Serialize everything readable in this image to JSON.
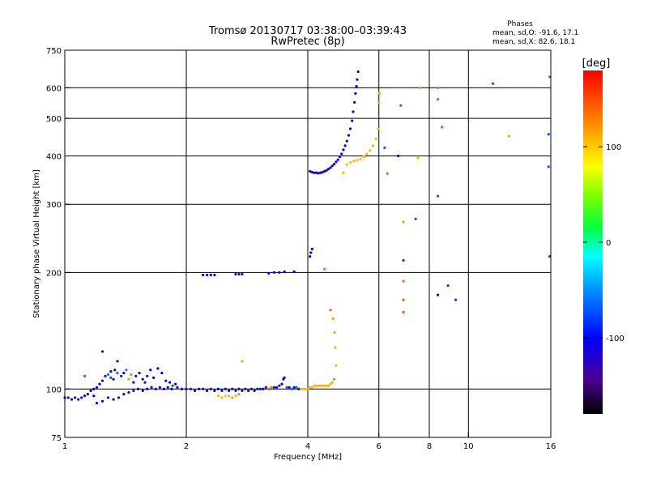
{
  "chart_data": {
    "type": "scatter",
    "title": "Tromsø 20130717 03:38:00–03:39:43",
    "subtitle": "RwPretec (8p)",
    "phase_stats": {
      "header": "Phases",
      "line_o": "mean, sd,O: -91.6, 17.1",
      "line_x": "mean, sd,X:  82.6, 18.1"
    },
    "xlabel": "Frequency [MHz]",
    "ylabel": "Stationary phase Virtual Height [km]",
    "x_scale": "log",
    "y_scale": "log",
    "xlim": [
      1,
      16
    ],
    "ylim": [
      75,
      750
    ],
    "x_ticks": [
      {
        "value": 1,
        "label": "1"
      },
      {
        "value": 2,
        "label": "2"
      },
      {
        "value": 4,
        "label": "4"
      },
      {
        "value": 6,
        "label": "6"
      },
      {
        "value": 8,
        "label": "8"
      },
      {
        "value": 10,
        "label": "10"
      },
      {
        "value": 16,
        "label": "16"
      }
    ],
    "y_ticks": [
      {
        "value": 75,
        "label": "75"
      },
      {
        "value": 100,
        "label": "100"
      },
      {
        "value": 200,
        "label": "200"
      },
      {
        "value": 300,
        "label": "300"
      },
      {
        "value": 400,
        "label": "400"
      },
      {
        "value": 500,
        "label": "500"
      },
      {
        "value": 600,
        "label": "600"
      },
      {
        "value": 750,
        "label": "750"
      }
    ],
    "grid_x": [
      2,
      4,
      6,
      8,
      10
    ],
    "grid_y": [
      100,
      200,
      300,
      400,
      500,
      600
    ],
    "colorbar": {
      "label": "[deg]",
      "range": [
        -180,
        180
      ],
      "ticks": [
        {
          "value": 100,
          "label": "100"
        },
        {
          "value": 0,
          "label": "0"
        },
        {
          "value": -100,
          "label": "-100"
        }
      ]
    },
    "points": [
      {
        "f": 1.0,
        "h": 95,
        "p": -110
      },
      {
        "f": 1.02,
        "h": 95,
        "p": -110
      },
      {
        "f": 1.04,
        "h": 94,
        "p": -110
      },
      {
        "f": 1.06,
        "h": 95,
        "p": -105
      },
      {
        "f": 1.08,
        "h": 94,
        "p": -110
      },
      {
        "f": 1.1,
        "h": 95,
        "p": -108
      },
      {
        "f": 1.12,
        "h": 96,
        "p": -110
      },
      {
        "f": 1.14,
        "h": 97,
        "p": -100
      },
      {
        "f": 1.16,
        "h": 99,
        "p": -110
      },
      {
        "f": 1.18,
        "h": 100,
        "p": -105
      },
      {
        "f": 1.2,
        "h": 101,
        "p": -110
      },
      {
        "f": 1.22,
        "h": 103,
        "p": -100
      },
      {
        "f": 1.24,
        "h": 105,
        "p": -105
      },
      {
        "f": 1.26,
        "h": 108,
        "p": -110
      },
      {
        "f": 1.28,
        "h": 109,
        "p": -60
      },
      {
        "f": 1.3,
        "h": 107,
        "p": -70
      },
      {
        "f": 1.32,
        "h": 106,
        "p": -105
      },
      {
        "f": 1.3,
        "h": 111,
        "p": -110
      },
      {
        "f": 1.33,
        "h": 112,
        "p": -110
      },
      {
        "f": 1.35,
        "h": 110,
        "p": -60
      },
      {
        "f": 1.38,
        "h": 108,
        "p": -95
      },
      {
        "f": 1.4,
        "h": 110,
        "p": -110
      },
      {
        "f": 1.42,
        "h": 112,
        "p": -50
      },
      {
        "f": 1.44,
        "h": 106,
        "p": 120
      },
      {
        "f": 1.46,
        "h": 109,
        "p": 130
      },
      {
        "f": 1.48,
        "h": 104,
        "p": -100
      },
      {
        "f": 1.5,
        "h": 108,
        "p": -110
      },
      {
        "f": 1.53,
        "h": 110,
        "p": -105
      },
      {
        "f": 1.56,
        "h": 106,
        "p": -110
      },
      {
        "f": 1.58,
        "h": 104,
        "p": -95
      },
      {
        "f": 1.6,
        "h": 108,
        "p": -105
      },
      {
        "f": 1.63,
        "h": 112,
        "p": -110
      },
      {
        "f": 1.66,
        "h": 107,
        "p": -100
      },
      {
        "f": 1.7,
        "h": 113,
        "p": -110
      },
      {
        "f": 1.74,
        "h": 110,
        "p": -105
      },
      {
        "f": 1.78,
        "h": 105,
        "p": -100
      },
      {
        "f": 1.82,
        "h": 104,
        "p": -110
      },
      {
        "f": 1.85,
        "h": 102,
        "p": -70
      },
      {
        "f": 1.88,
        "h": 103,
        "p": -105
      },
      {
        "f": 1.35,
        "h": 118,
        "p": -100
      },
      {
        "f": 1.24,
        "h": 125,
        "p": -110
      },
      {
        "f": 1.12,
        "h": 108,
        "p": -60
      },
      {
        "f": 1.18,
        "h": 96,
        "p": -100
      },
      {
        "f": 1.2,
        "h": 92,
        "p": -110
      },
      {
        "f": 1.24,
        "h": 93,
        "p": -110
      },
      {
        "f": 1.28,
        "h": 95,
        "p": -110
      },
      {
        "f": 1.32,
        "h": 94,
        "p": -110
      },
      {
        "f": 1.36,
        "h": 95,
        "p": -110
      },
      {
        "f": 1.4,
        "h": 97,
        "p": -110
      },
      {
        "f": 1.44,
        "h": 98,
        "p": -110
      },
      {
        "f": 1.48,
        "h": 99,
        "p": -110
      },
      {
        "f": 1.52,
        "h": 100,
        "p": -110
      },
      {
        "f": 1.56,
        "h": 99,
        "p": -110
      },
      {
        "f": 1.6,
        "h": 100,
        "p": -110
      },
      {
        "f": 1.64,
        "h": 101,
        "p": -110
      },
      {
        "f": 1.68,
        "h": 100,
        "p": -110
      },
      {
        "f": 1.72,
        "h": 101,
        "p": -110
      },
      {
        "f": 1.76,
        "h": 100,
        "p": -110
      },
      {
        "f": 1.8,
        "h": 101,
        "p": -110
      },
      {
        "f": 1.84,
        "h": 100,
        "p": -110
      },
      {
        "f": 1.9,
        "h": 101,
        "p": -110
      },
      {
        "f": 1.95,
        "h": 100,
        "p": -110
      },
      {
        "f": 2.0,
        "h": 100,
        "p": -110
      },
      {
        "f": 2.05,
        "h": 100,
        "p": -110
      },
      {
        "f": 2.1,
        "h": 99,
        "p": -105
      },
      {
        "f": 2.15,
        "h": 100,
        "p": -110
      },
      {
        "f": 2.2,
        "h": 100,
        "p": -110
      },
      {
        "f": 2.25,
        "h": 99,
        "p": -100
      },
      {
        "f": 2.3,
        "h": 100,
        "p": -110
      },
      {
        "f": 2.35,
        "h": 99,
        "p": -110
      },
      {
        "f": 2.4,
        "h": 100,
        "p": -105
      },
      {
        "f": 2.45,
        "h": 99,
        "p": -110
      },
      {
        "f": 2.5,
        "h": 100,
        "p": -110
      },
      {
        "f": 2.55,
        "h": 99,
        "p": -110
      },
      {
        "f": 2.6,
        "h": 100,
        "p": -100
      },
      {
        "f": 2.65,
        "h": 99,
        "p": -110
      },
      {
        "f": 2.7,
        "h": 100,
        "p": -110
      },
      {
        "f": 2.75,
        "h": 99,
        "p": -105
      },
      {
        "f": 2.8,
        "h": 100,
        "p": -110
      },
      {
        "f": 2.85,
        "h": 99,
        "p": -110
      },
      {
        "f": 2.9,
        "h": 100,
        "p": -110
      },
      {
        "f": 2.95,
        "h": 99,
        "p": -110
      },
      {
        "f": 3.0,
        "h": 100,
        "p": -110
      },
      {
        "f": 3.05,
        "h": 100,
        "p": -100
      },
      {
        "f": 3.1,
        "h": 100,
        "p": -105
      },
      {
        "f": 3.15,
        "h": 101,
        "p": -110
      },
      {
        "f": 3.2,
        "h": 100,
        "p": 150
      },
      {
        "f": 3.25,
        "h": 101,
        "p": 140
      },
      {
        "f": 3.3,
        "h": 101,
        "p": -110
      },
      {
        "f": 3.35,
        "h": 101,
        "p": -105
      },
      {
        "f": 3.4,
        "h": 102,
        "p": -110
      },
      {
        "f": 3.45,
        "h": 103,
        "p": -110
      },
      {
        "f": 3.48,
        "h": 106,
        "p": -120
      },
      {
        "f": 3.5,
        "h": 107,
        "p": -125
      },
      {
        "f": 3.55,
        "h": 101,
        "p": -70
      },
      {
        "f": 3.6,
        "h": 101,
        "p": -110
      },
      {
        "f": 3.65,
        "h": 100,
        "p": -60
      },
      {
        "f": 3.7,
        "h": 101,
        "p": -110
      },
      {
        "f": 3.75,
        "h": 101,
        "p": -60
      },
      {
        "f": 3.8,
        "h": 100,
        "p": -110
      },
      {
        "f": 3.85,
        "h": 100,
        "p": 110
      },
      {
        "f": 3.9,
        "h": 100,
        "p": 110
      },
      {
        "f": 3.95,
        "h": 100,
        "p": 110
      },
      {
        "f": 4.0,
        "h": 100,
        "p": 110
      },
      {
        "f": 4.05,
        "h": 101,
        "p": 110
      },
      {
        "f": 4.1,
        "h": 101,
        "p": 110
      },
      {
        "f": 4.15,
        "h": 102,
        "p": 110
      },
      {
        "f": 4.2,
        "h": 102,
        "p": 110
      },
      {
        "f": 4.25,
        "h": 102,
        "p": 110
      },
      {
        "f": 4.3,
        "h": 102,
        "p": 110
      },
      {
        "f": 4.35,
        "h": 102,
        "p": 110
      },
      {
        "f": 4.4,
        "h": 102,
        "p": 110
      },
      {
        "f": 4.45,
        "h": 102,
        "p": 110
      },
      {
        "f": 4.5,
        "h": 102,
        "p": 110
      },
      {
        "f": 4.55,
        "h": 103,
        "p": 110
      },
      {
        "f": 4.6,
        "h": 104,
        "p": 110
      },
      {
        "f": 4.65,
        "h": 106,
        "p": 130
      },
      {
        "f": 2.4,
        "h": 96,
        "p": 110
      },
      {
        "f": 2.45,
        "h": 95,
        "p": 110
      },
      {
        "f": 2.5,
        "h": 96,
        "p": 100
      },
      {
        "f": 2.55,
        "h": 96,
        "p": 110
      },
      {
        "f": 2.6,
        "h": 95,
        "p": 120
      },
      {
        "f": 2.65,
        "h": 96,
        "p": 110
      },
      {
        "f": 2.7,
        "h": 97,
        "p": 130
      },
      {
        "f": 2.75,
        "h": 118,
        "p": 120
      },
      {
        "f": 2.2,
        "h": 197,
        "p": -110
      },
      {
        "f": 2.25,
        "h": 197,
        "p": -110
      },
      {
        "f": 2.3,
        "h": 197,
        "p": -110
      },
      {
        "f": 2.35,
        "h": 197,
        "p": -110
      },
      {
        "f": 2.65,
        "h": 198,
        "p": -110
      },
      {
        "f": 2.7,
        "h": 198,
        "p": -110
      },
      {
        "f": 2.75,
        "h": 198,
        "p": -110
      },
      {
        "f": 3.2,
        "h": 199,
        "p": -110
      },
      {
        "f": 3.3,
        "h": 200,
        "p": -110
      },
      {
        "f": 3.4,
        "h": 200,
        "p": -110
      },
      {
        "f": 3.5,
        "h": 201,
        "p": -110
      },
      {
        "f": 3.7,
        "h": 201,
        "p": -110
      },
      {
        "f": 4.05,
        "h": 220,
        "p": -110
      },
      {
        "f": 4.07,
        "h": 225,
        "p": -110
      },
      {
        "f": 4.1,
        "h": 230,
        "p": -110
      },
      {
        "f": 4.4,
        "h": 204,
        "p": 140
      },
      {
        "f": 4.05,
        "h": 365,
        "p": -110
      },
      {
        "f": 4.1,
        "h": 363,
        "p": -110
      },
      {
        "f": 4.15,
        "h": 362,
        "p": -110
      },
      {
        "f": 4.2,
        "h": 362,
        "p": -110
      },
      {
        "f": 4.25,
        "h": 361,
        "p": -110
      },
      {
        "f": 4.3,
        "h": 362,
        "p": -110
      },
      {
        "f": 4.35,
        "h": 363,
        "p": -110
      },
      {
        "f": 4.4,
        "h": 365,
        "p": -110
      },
      {
        "f": 4.45,
        "h": 367,
        "p": -110
      },
      {
        "f": 4.5,
        "h": 370,
        "p": -110
      },
      {
        "f": 4.55,
        "h": 373,
        "p": -110
      },
      {
        "f": 4.6,
        "h": 377,
        "p": -110
      },
      {
        "f": 4.65,
        "h": 381,
        "p": -110
      },
      {
        "f": 4.7,
        "h": 386,
        "p": -110
      },
      {
        "f": 4.75,
        "h": 391,
        "p": -110
      },
      {
        "f": 4.8,
        "h": 398,
        "p": -110
      },
      {
        "f": 4.85,
        "h": 405,
        "p": -110
      },
      {
        "f": 4.9,
        "h": 415,
        "p": -110
      },
      {
        "f": 4.95,
        "h": 425,
        "p": -110
      },
      {
        "f": 5.0,
        "h": 437,
        "p": -110
      },
      {
        "f": 5.05,
        "h": 452,
        "p": -110
      },
      {
        "f": 5.1,
        "h": 470,
        "p": -110
      },
      {
        "f": 5.15,
        "h": 493,
        "p": -110
      },
      {
        "f": 5.18,
        "h": 520,
        "p": -110
      },
      {
        "f": 5.22,
        "h": 550,
        "p": -110
      },
      {
        "f": 5.25,
        "h": 580,
        "p": -110
      },
      {
        "f": 5.28,
        "h": 605,
        "p": -110
      },
      {
        "f": 5.3,
        "h": 630,
        "p": -110
      },
      {
        "f": 5.33,
        "h": 660,
        "p": -110
      },
      {
        "f": 4.9,
        "h": 362,
        "p": 110
      },
      {
        "f": 5.0,
        "h": 380,
        "p": 110
      },
      {
        "f": 5.1,
        "h": 385,
        "p": 110
      },
      {
        "f": 5.2,
        "h": 388,
        "p": 110
      },
      {
        "f": 5.3,
        "h": 390,
        "p": 110
      },
      {
        "f": 5.4,
        "h": 393,
        "p": 110
      },
      {
        "f": 5.5,
        "h": 398,
        "p": 110
      },
      {
        "f": 5.6,
        "h": 405,
        "p": 110
      },
      {
        "f": 5.7,
        "h": 413,
        "p": 110
      },
      {
        "f": 5.8,
        "h": 425,
        "p": 110
      },
      {
        "f": 5.9,
        "h": 443,
        "p": 110
      },
      {
        "f": 5.98,
        "h": 470,
        "p": 110
      },
      {
        "f": 6.0,
        "h": 550,
        "p": 110
      },
      {
        "f": 6.02,
        "h": 580,
        "p": 110
      },
      {
        "f": 4.55,
        "h": 160,
        "p": 140
      },
      {
        "f": 4.62,
        "h": 152,
        "p": 120
      },
      {
        "f": 4.66,
        "h": 140,
        "p": 120
      },
      {
        "f": 4.68,
        "h": 128,
        "p": 110
      },
      {
        "f": 4.7,
        "h": 115,
        "p": 110
      },
      {
        "f": 6.2,
        "h": 420,
        "p": -70
      },
      {
        "f": 6.3,
        "h": 360,
        "p": 140
      },
      {
        "f": 6.8,
        "h": 540,
        "p": -60
      },
      {
        "f": 6.7,
        "h": 400,
        "p": -100
      },
      {
        "f": 6.9,
        "h": 270,
        "p": 120
      },
      {
        "f": 6.9,
        "h": 215,
        "p": -80
      },
      {
        "f": 6.9,
        "h": 190,
        "p": 140
      },
      {
        "f": 6.9,
        "h": 170,
        "p": 150
      },
      {
        "f": 6.9,
        "h": 158,
        "p": 150
      },
      {
        "f": 7.4,
        "h": 275,
        "p": -70
      },
      {
        "f": 7.5,
        "h": 395,
        "p": 110
      },
      {
        "f": 7.6,
        "h": 600,
        "p": 120
      },
      {
        "f": 8.4,
        "h": 600,
        "p": 140
      },
      {
        "f": 8.4,
        "h": 560,
        "p": 150
      },
      {
        "f": 8.6,
        "h": 475,
        "p": 150
      },
      {
        "f": 8.4,
        "h": 315,
        "p": -70
      },
      {
        "f": 8.4,
        "h": 175,
        "p": -110
      },
      {
        "f": 8.9,
        "h": 185,
        "p": -80
      },
      {
        "f": 9.3,
        "h": 170,
        "p": -80
      },
      {
        "f": 11.5,
        "h": 615,
        "p": -70
      },
      {
        "f": 12.6,
        "h": 450,
        "p": 120
      },
      {
        "f": 15.8,
        "h": 455,
        "p": -70
      },
      {
        "f": 15.8,
        "h": 375,
        "p": -70
      },
      {
        "f": 15.9,
        "h": 220,
        "p": -80
      },
      {
        "f": 15.9,
        "h": 640,
        "p": 160
      }
    ]
  }
}
